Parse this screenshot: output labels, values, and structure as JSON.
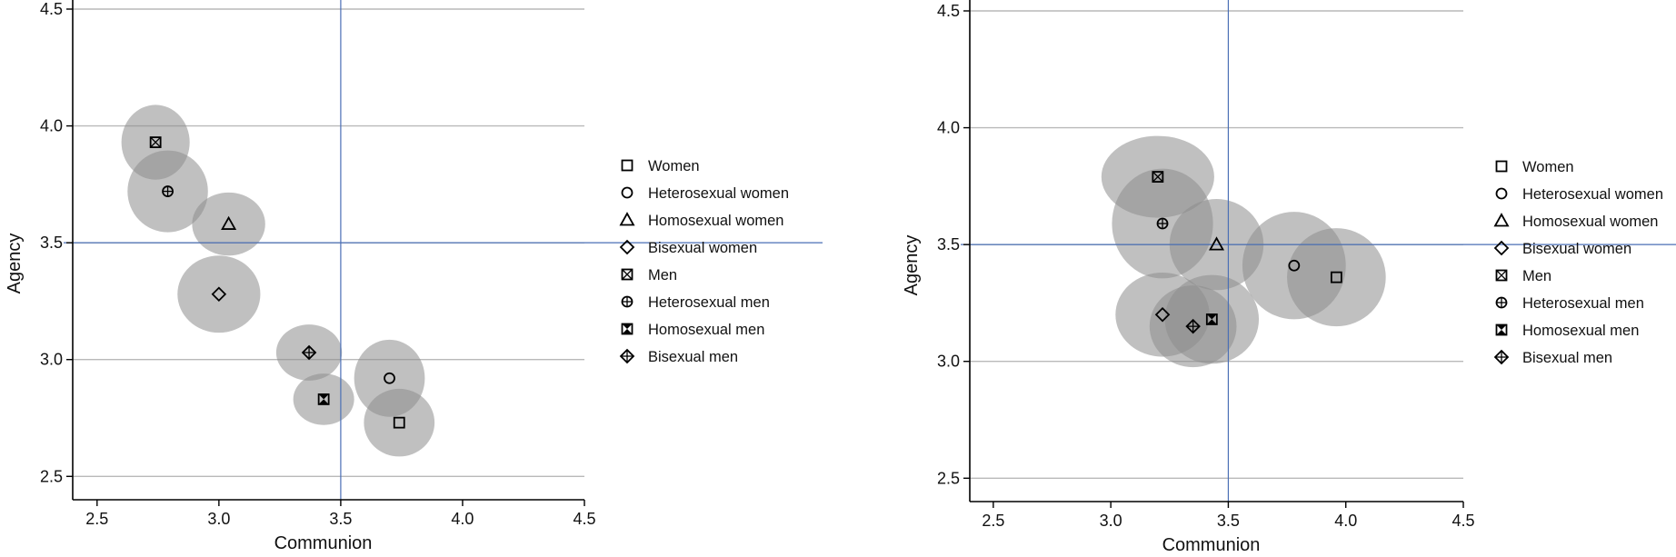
{
  "colors": {
    "ellipse": "#8c8c8c",
    "reference_line": "#4a6fb5",
    "grid": "#b9b9b9",
    "axis": "#000000"
  },
  "chart_data": [
    {
      "type": "scatter",
      "xlabel": "Communion",
      "ylabel": "Agency",
      "xlim": [
        2.4,
        4.5
      ],
      "ylim": [
        2.4,
        4.5
      ],
      "xticks": [
        "2.5",
        "3.0",
        "3.5",
        "4.0",
        "4.5"
      ],
      "yticks": [
        "2.5",
        "3.0",
        "3.5",
        "4.0",
        "4.5"
      ],
      "grid": "horizontal",
      "reference_lines": {
        "x": 3.5,
        "y": 3.5
      },
      "legend_position": "right",
      "series": [
        {
          "name": "Women",
          "marker": "square",
          "x": 3.74,
          "y": 2.73,
          "ellipse": {
            "rx": 0.145,
            "ry": 0.145
          }
        },
        {
          "name": "Heterosexual women",
          "marker": "circle",
          "x": 3.7,
          "y": 2.92,
          "ellipse": {
            "rx": 0.145,
            "ry": 0.165
          }
        },
        {
          "name": "Homosexual women",
          "marker": "triangle",
          "x": 3.04,
          "y": 3.58,
          "ellipse": {
            "rx": 0.15,
            "ry": 0.135
          }
        },
        {
          "name": "Bisexual women",
          "marker": "diamond",
          "x": 3.0,
          "y": 3.28,
          "ellipse": {
            "rx": 0.17,
            "ry": 0.165
          }
        },
        {
          "name": "Men",
          "marker": "square-x",
          "x": 2.74,
          "y": 3.93,
          "ellipse": {
            "rx": 0.14,
            "ry": 0.16
          }
        },
        {
          "name": "Heterosexual men",
          "marker": "circle-plus",
          "x": 2.79,
          "y": 3.72,
          "ellipse": {
            "rx": 0.165,
            "ry": 0.175
          }
        },
        {
          "name": "Homosexual men",
          "marker": "square-hourglass",
          "x": 3.43,
          "y": 2.83,
          "ellipse": {
            "rx": 0.125,
            "ry": 0.11
          }
        },
        {
          "name": "Bisexual men",
          "marker": "diamond-plus",
          "x": 3.37,
          "y": 3.03,
          "ellipse": {
            "rx": 0.135,
            "ry": 0.12
          }
        }
      ]
    },
    {
      "type": "scatter",
      "xlabel": "Communion",
      "ylabel": "Agency",
      "xlim": [
        2.4,
        4.5
      ],
      "ylim": [
        2.4,
        4.5
      ],
      "xticks": [
        "2.5",
        "3.0",
        "3.5",
        "4.0",
        "4.5"
      ],
      "yticks": [
        "2.5",
        "3.0",
        "3.5",
        "4.0",
        "4.5"
      ],
      "grid": "horizontal",
      "reference_lines": {
        "x": 3.5,
        "y": 3.5
      },
      "legend_position": "right",
      "series": [
        {
          "name": "Women",
          "marker": "square",
          "x": 3.96,
          "y": 3.36,
          "ellipse": {
            "rx": 0.21,
            "ry": 0.21
          }
        },
        {
          "name": "Heterosexual women",
          "marker": "circle",
          "x": 3.78,
          "y": 3.41,
          "ellipse": {
            "rx": 0.22,
            "ry": 0.23
          }
        },
        {
          "name": "Homosexual women",
          "marker": "triangle",
          "x": 3.45,
          "y": 3.5,
          "ellipse": {
            "rx": 0.2,
            "ry": 0.195
          }
        },
        {
          "name": "Bisexual women",
          "marker": "diamond",
          "x": 3.22,
          "y": 3.2,
          "ellipse": {
            "rx": 0.2,
            "ry": 0.18
          }
        },
        {
          "name": "Men",
          "marker": "square-x",
          "x": 3.2,
          "y": 3.79,
          "ellipse": {
            "rx": 0.24,
            "ry": 0.175
          }
        },
        {
          "name": "Heterosexual men",
          "marker": "circle-plus",
          "x": 3.22,
          "y": 3.59,
          "ellipse": {
            "rx": 0.215,
            "ry": 0.235
          }
        },
        {
          "name": "Homosexual men",
          "marker": "square-hourglass",
          "x": 3.43,
          "y": 3.18,
          "ellipse": {
            "rx": 0.2,
            "ry": 0.19
          }
        },
        {
          "name": "Bisexual men",
          "marker": "diamond-plus",
          "x": 3.35,
          "y": 3.15,
          "ellipse": {
            "rx": 0.185,
            "ry": 0.175
          }
        }
      ]
    }
  ]
}
